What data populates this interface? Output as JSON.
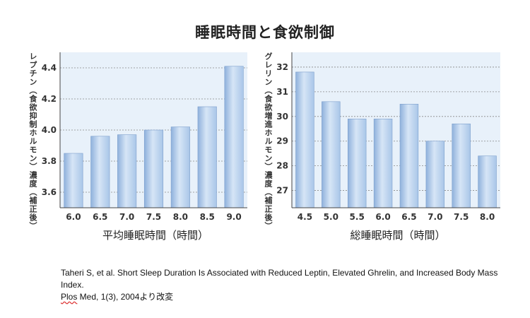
{
  "title": "睡眠時間と食欲制御",
  "chart_data": [
    {
      "type": "bar",
      "ylabel": "レプチン（食欲抑制ホルモン）濃度（補正後）",
      "xlabel": "平均睡眠時間（時間）",
      "categories": [
        "6.0",
        "6.5",
        "7.0",
        "7.5",
        "8.0",
        "8.5",
        "9.0"
      ],
      "values": [
        3.85,
        3.96,
        3.97,
        4.0,
        4.02,
        4.15,
        4.41
      ],
      "yticks": [
        "3.6",
        "3.8",
        "4.0",
        "4.2",
        "4.4"
      ],
      "ylim": [
        3.5,
        4.5
      ],
      "grid": true,
      "bar_color": "#a9c6e8",
      "background": "#e8f1fa"
    },
    {
      "type": "bar",
      "ylabel": "グレリン（食欲増進ホルモン）濃度（補正後）",
      "xlabel": "総睡眠時間（時間）",
      "categories": [
        "4.5",
        "5.0",
        "5.5",
        "6.0",
        "6.5",
        "7.0",
        "7.5",
        "8.0"
      ],
      "values": [
        31.8,
        30.6,
        29.9,
        29.9,
        30.5,
        29.0,
        29.7,
        28.4
      ],
      "yticks": [
        "27",
        "28",
        "29",
        "30",
        "31",
        "32"
      ],
      "ylim": [
        26.3,
        32.6
      ],
      "grid": true,
      "bar_color": "#a9c6e8",
      "background": "#e8f1fa"
    }
  ],
  "citation": {
    "line1": "Taheri S, et al. Short Sleep Duration Is Associated with Reduced Leptin, Elevated Ghrelin, and Increased Body Mass Index.",
    "line2_word": "Plos",
    "line2_rest": " Med, 1(3), 2004より改変"
  }
}
